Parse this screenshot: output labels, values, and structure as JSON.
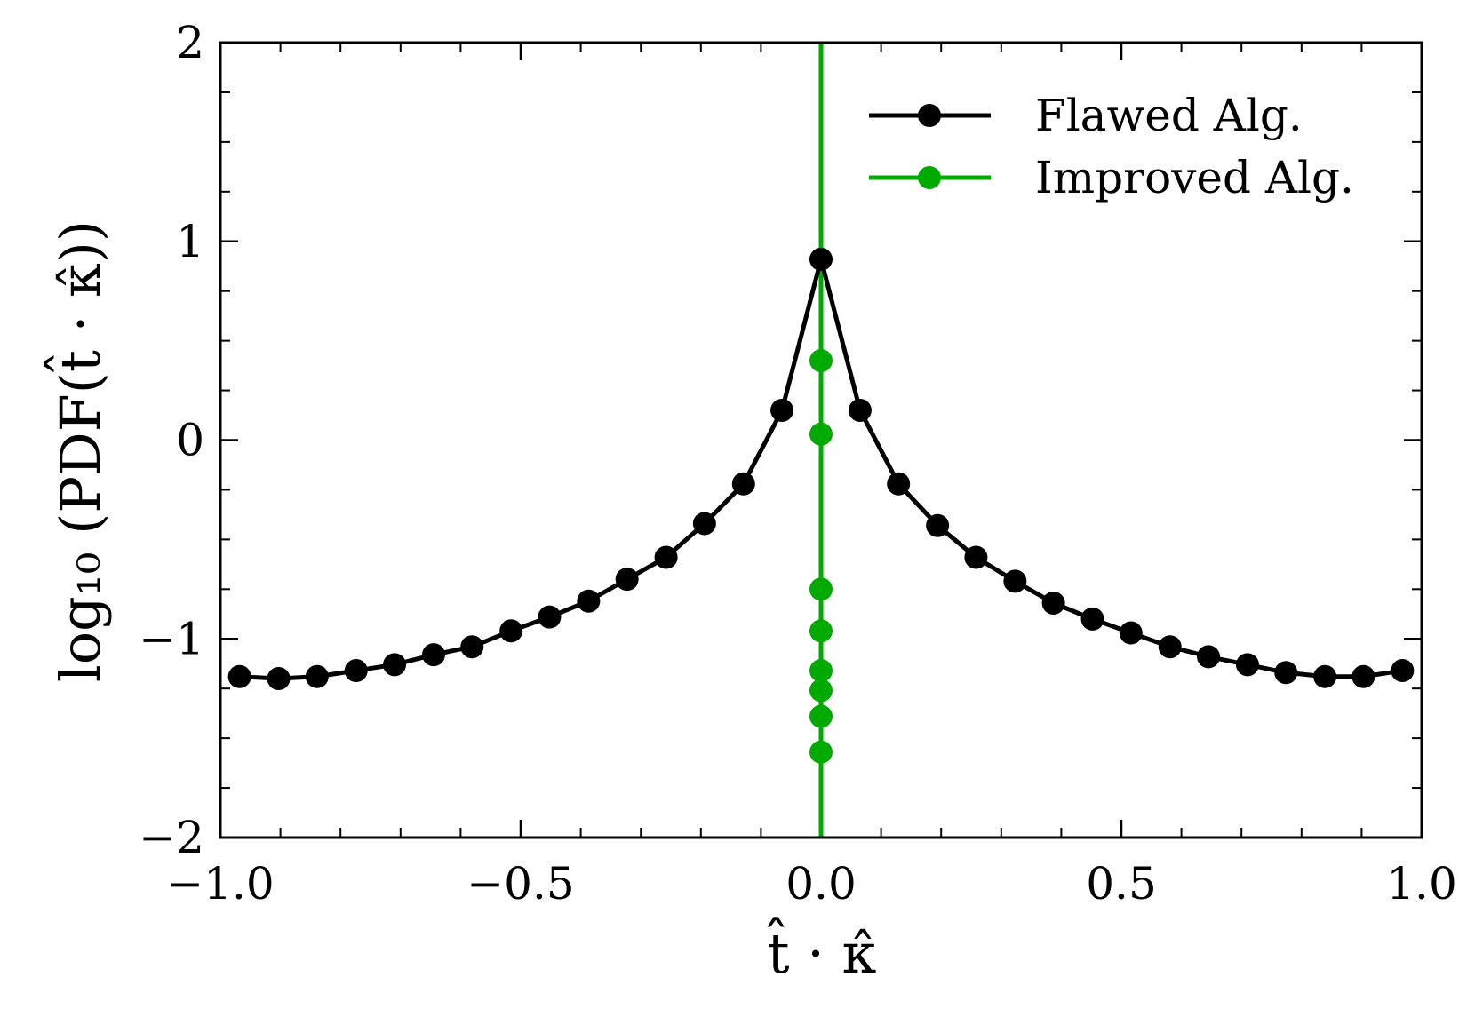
{
  "chart_data": {
    "type": "line",
    "xlabel": "t̂ · κ̂",
    "ylabel": "log₁₀ (PDF(t̂ · κ̂))",
    "xlim": [
      -1.0,
      1.0
    ],
    "ylim": [
      -2,
      2
    ],
    "grid": false,
    "legend_position": "top-right",
    "x_ticks": [
      -1.0,
      -0.5,
      0.0,
      0.5,
      1.0
    ],
    "x_tick_labels": [
      "−1.0",
      "−0.5",
      "0.0",
      "0.5",
      "1.0"
    ],
    "y_ticks": [
      -2,
      -1,
      0,
      1,
      2
    ],
    "y_tick_labels": [
      "−2",
      "−1",
      "0",
      "1",
      "2"
    ],
    "series": [
      {
        "name": "Flawed Alg.",
        "color": "#000000",
        "x": [
          -0.968,
          -0.903,
          -0.839,
          -0.774,
          -0.71,
          -0.645,
          -0.581,
          -0.516,
          -0.452,
          -0.387,
          -0.323,
          -0.258,
          -0.194,
          -0.129,
          -0.065,
          0.0,
          0.065,
          0.129,
          0.194,
          0.258,
          0.323,
          0.387,
          0.452,
          0.516,
          0.581,
          0.645,
          0.71,
          0.774,
          0.839,
          0.903,
          0.968
        ],
        "y": [
          -1.19,
          -1.2,
          -1.19,
          -1.16,
          -1.13,
          -1.08,
          -1.04,
          -0.96,
          -0.89,
          -0.81,
          -0.7,
          -0.59,
          -0.42,
          -0.22,
          0.15,
          0.91,
          0.15,
          -0.22,
          -0.43,
          -0.59,
          -0.71,
          -0.82,
          -0.9,
          -0.97,
          -1.04,
          -1.09,
          -1.13,
          -1.17,
          -1.19,
          -1.19,
          -1.16
        ]
      },
      {
        "name": "Improved Alg.",
        "color": "#00aa00",
        "x": [
          0.0,
          0.0,
          0.0,
          0.0,
          0.0,
          0.0,
          0.0,
          0.0
        ],
        "y": [
          0.4,
          0.03,
          -0.75,
          -0.96,
          -1.16,
          -1.26,
          -1.39,
          -1.57
        ]
      }
    ],
    "vertical_line": {
      "x": 0.0,
      "color": "#00aa00"
    }
  }
}
